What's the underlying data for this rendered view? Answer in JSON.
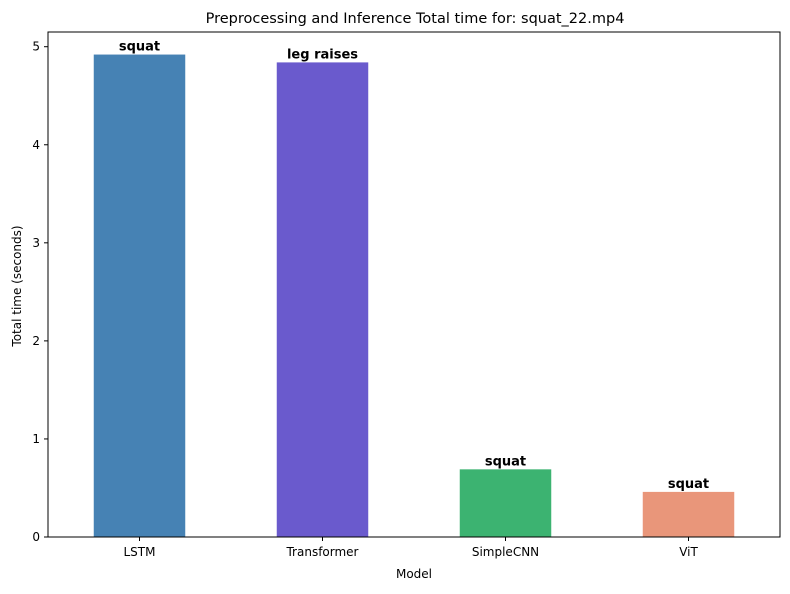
{
  "chart_data": {
    "type": "bar",
    "title": "Preprocessing and Inference Total time for: squat_22.mp4",
    "xlabel": "Model",
    "ylabel": "Total time (seconds)",
    "ylim": [
      0,
      5.15
    ],
    "yticks": [
      0,
      1,
      2,
      3,
      4,
      5
    ],
    "grid": false,
    "categories": [
      "LSTM",
      "Transformer",
      "SimpleCNN",
      "ViT"
    ],
    "values": [
      4.92,
      4.84,
      0.69,
      0.46
    ],
    "bar_labels": [
      "squat",
      "leg raises",
      "squat",
      "squat"
    ],
    "colors": [
      "#4682b4",
      "#6a5acd",
      "#3cb371",
      "#e9967a"
    ]
  }
}
